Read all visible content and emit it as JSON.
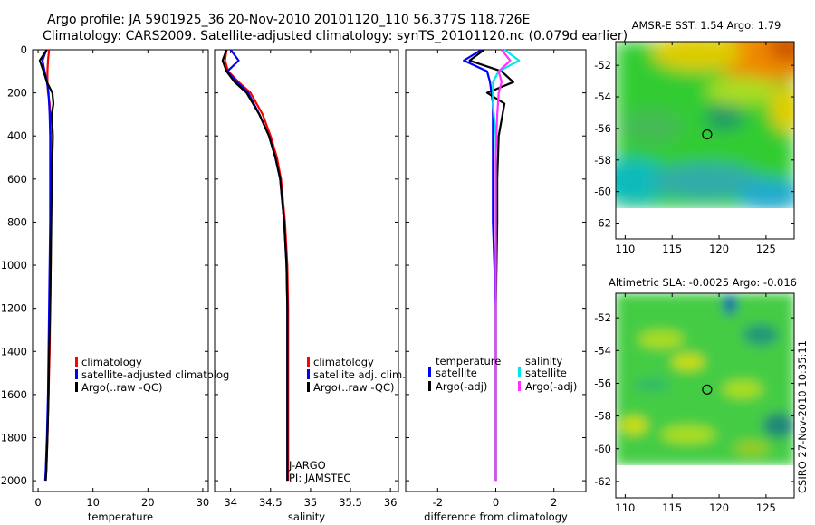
{
  "title": {
    "line1": "Argo profile: JA 5901925_36 20-Nov-2010 20101120_110 56.377S 118.726E",
    "line2": "Climatology: CARS2009. Satellite-adjusted climatology: synTS_20101120.nc (0.079d earlier)"
  },
  "stamp": "CSIRO 27-Nov-2010 10:35:11",
  "colors": {
    "red": "#ff0000",
    "blue": "#0000ff",
    "black": "#000000",
    "cyan": "#00e5ee",
    "magenta": "#ff33ff"
  },
  "depth_ticks": [
    "0",
    "200",
    "400",
    "600",
    "800",
    "1000",
    "1200",
    "1400",
    "1600",
    "1800",
    "2000"
  ],
  "chart_data": [
    {
      "type": "line",
      "panel": "temperature",
      "xlabel": "temperature",
      "xlim": [
        -1,
        31
      ],
      "ylim": [
        2050,
        0
      ],
      "xticks": [
        "0",
        "10",
        "20",
        "30"
      ],
      "legend": [
        "climatology",
        "satellite-adjusted climatolog",
        "Argo(..raw -QC)"
      ],
      "series": [
        {
          "name": "climatology",
          "color": "red",
          "x": [
            2.0,
            1.8,
            1.7,
            1.7,
            1.8,
            2.1,
            2.2,
            2.3,
            2.3,
            2.3,
            2.3,
            2.3,
            2.2,
            2.1,
            1.9,
            1.7,
            1.5,
            1.4
          ],
          "y": [
            0,
            50,
            100,
            150,
            200,
            250,
            300,
            400,
            500,
            600,
            800,
            1000,
            1200,
            1400,
            1600,
            1800,
            1950,
            2000
          ]
        },
        {
          "name": "satellite-adjusted climatolog",
          "color": "blue",
          "x": [
            1.5,
            0.8,
            1.2,
            1.6,
            1.9,
            2.0,
            2.1,
            2.2,
            2.2,
            2.2,
            2.2,
            2.1,
            2.0,
            1.9,
            1.8,
            1.6,
            1.4,
            1.3
          ],
          "y": [
            0,
            50,
            100,
            150,
            200,
            250,
            300,
            400,
            500,
            600,
            800,
            1000,
            1200,
            1400,
            1600,
            1800,
            1950,
            2000
          ]
        },
        {
          "name": "Argo(..raw -QC)",
          "color": "black",
          "x": [
            1.6,
            0.3,
            1.0,
            1.6,
            2.6,
            2.8,
            2.5,
            2.7,
            2.6,
            2.5,
            2.4,
            2.3,
            2.2,
            2.0,
            1.9,
            1.7,
            1.5,
            1.4
          ],
          "y": [
            0,
            50,
            100,
            150,
            200,
            250,
            300,
            400,
            500,
            600,
            800,
            1000,
            1200,
            1400,
            1600,
            1800,
            1950,
            2000
          ]
        }
      ]
    },
    {
      "type": "line",
      "panel": "salinity",
      "xlabel": "salinity",
      "xlim": [
        33.8,
        36.1
      ],
      "ylim": [
        2050,
        0
      ],
      "xticks": [
        "34",
        "34.5",
        "35",
        "35.5",
        "36"
      ],
      "legend": [
        "climatology",
        "satellite adj. clim.",
        "Argo(..raw -QC)"
      ],
      "annotation": [
        "J-ARGO",
        "PI: JAMSTEC"
      ],
      "series": [
        {
          "name": "climatology",
          "color": "red",
          "x": [
            33.95,
            33.93,
            33.97,
            34.1,
            34.25,
            34.4,
            34.5,
            34.58,
            34.63,
            34.68,
            34.71,
            34.72,
            34.72,
            34.72,
            34.72
          ],
          "y": [
            0,
            50,
            100,
            150,
            200,
            300,
            400,
            500,
            600,
            800,
            1000,
            1200,
            1500,
            1800,
            2000
          ]
        },
        {
          "name": "satellite adj. clim.",
          "color": "blue",
          "x": [
            34.0,
            34.1,
            33.96,
            34.08,
            34.22,
            34.36,
            34.48,
            34.56,
            34.62,
            34.67,
            34.7,
            34.71,
            34.71,
            34.71,
            34.71
          ],
          "y": [
            0,
            50,
            100,
            150,
            200,
            300,
            400,
            500,
            600,
            800,
            1000,
            1200,
            1500,
            1800,
            2000
          ]
        },
        {
          "name": "Argo(..raw -QC)",
          "color": "black",
          "x": [
            33.95,
            33.9,
            33.95,
            34.05,
            34.2,
            34.36,
            34.48,
            34.56,
            34.62,
            34.67,
            34.7,
            34.71,
            34.71,
            34.71,
            34.71
          ],
          "y": [
            0,
            50,
            100,
            150,
            200,
            300,
            400,
            500,
            600,
            800,
            1000,
            1200,
            1500,
            1800,
            2000
          ]
        }
      ]
    },
    {
      "type": "line",
      "panel": "difference",
      "xlabel": "difference from climatology",
      "xlim": [
        -3.1,
        3.1
      ],
      "ylim": [
        2050,
        0
      ],
      "xticks": [
        "-2",
        "0",
        "2"
      ],
      "legend_groups": [
        {
          "heading": "temperature",
          "items": [
            "satellite",
            "Argo(-adj)"
          ]
        },
        {
          "heading": "salinity",
          "items": [
            "satellite",
            "Argo(-adj)"
          ]
        }
      ],
      "series": [
        {
          "name": "temperature satellite",
          "color": "blue",
          "x": [
            -0.5,
            -1.1,
            -0.3,
            -0.2,
            -0.1,
            -0.1,
            -0.1,
            -0.1,
            -0.05,
            0,
            0,
            0
          ],
          "y": [
            0,
            50,
            100,
            150,
            250,
            400,
            600,
            800,
            1000,
            1200,
            1600,
            2000
          ]
        },
        {
          "name": "temperature Argo(-adj)",
          "color": "black",
          "x": [
            -0.4,
            -0.9,
            0.2,
            0.6,
            -0.3,
            0.3,
            0.1,
            0.05,
            0.05,
            0,
            0,
            0
          ],
          "y": [
            0,
            50,
            100,
            150,
            200,
            250,
            400,
            600,
            800,
            1200,
            1600,
            2000
          ]
        },
        {
          "name": "salinity satellite",
          "color": "cyan",
          "x": [
            0.3,
            0.8,
            0.1,
            -0.1,
            -0.1,
            0,
            0,
            0,
            0,
            0
          ],
          "y": [
            0,
            50,
            100,
            150,
            250,
            400,
            600,
            800,
            1200,
            2000
          ]
        },
        {
          "name": "salinity Argo(-adj)",
          "color": "magenta",
          "x": [
            0.2,
            0.5,
            0.1,
            0.2,
            0.1,
            0.05,
            0,
            0,
            0
          ],
          "y": [
            0,
            50,
            100,
            150,
            200,
            300,
            500,
            800,
            2000
          ]
        }
      ]
    },
    {
      "type": "heatmap",
      "panel": "sst-map",
      "title": "AMSR-E SST: 1.54 Argo: 1.79",
      "xlim": [
        109,
        128
      ],
      "ylim": [
        -63,
        -50.5
      ],
      "xticks": [
        "110",
        "115",
        "120",
        "125"
      ],
      "yticks": [
        "-52",
        "-54",
        "-56",
        "-58",
        "-60",
        "-62"
      ],
      "marker": {
        "lon": 118.73,
        "lat": -56.38
      }
    },
    {
      "type": "heatmap",
      "panel": "sla-map",
      "title": "Altimetric SLA: -0.0025 Argo: -0.016",
      "xlim": [
        109,
        128
      ],
      "ylim": [
        -63,
        -50.5
      ],
      "xticks": [
        "110",
        "115",
        "120",
        "125"
      ],
      "yticks": [
        "-52",
        "-54",
        "-56",
        "-58",
        "-60",
        "-62"
      ],
      "marker": {
        "lon": 118.73,
        "lat": -56.38
      }
    }
  ]
}
